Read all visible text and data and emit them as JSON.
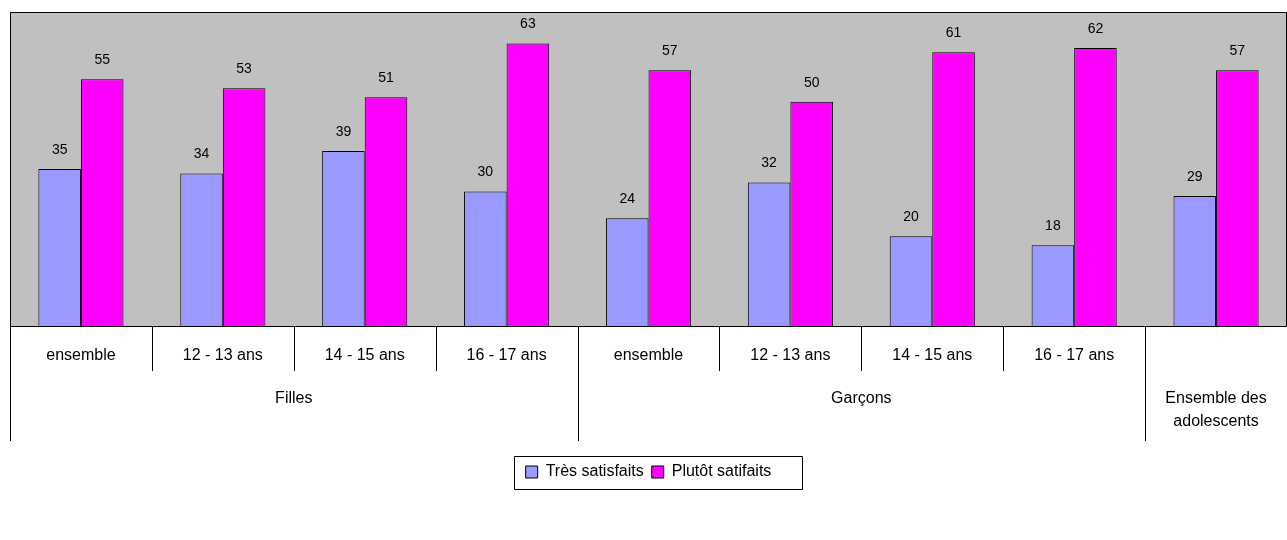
{
  "chart_data": {
    "type": "bar",
    "categories": [
      "ensemble",
      "12 - 13 ans",
      "14 - 15 ans",
      "16 - 17 ans",
      "ensemble",
      "12 - 13 ans",
      "14 - 15 ans",
      "16 - 17 ans",
      null
    ],
    "series": [
      {
        "name": "Très satisfaits",
        "color": "#9999ff",
        "values": [
          35,
          34,
          39,
          30,
          24,
          32,
          20,
          18,
          29
        ]
      },
      {
        "name": "Plutôt satifaits",
        "color": "#ff00ff",
        "values": [
          55,
          53,
          51,
          63,
          57,
          50,
          61,
          62,
          57
        ]
      }
    ],
    "annotations": [
      "Filles",
      "Garçons",
      "Ensemble des adolescents"
    ],
    "ylim": [
      0,
      70
    ],
    "data_labels": true,
    "legend": "bottom",
    "grid": false
  }
}
